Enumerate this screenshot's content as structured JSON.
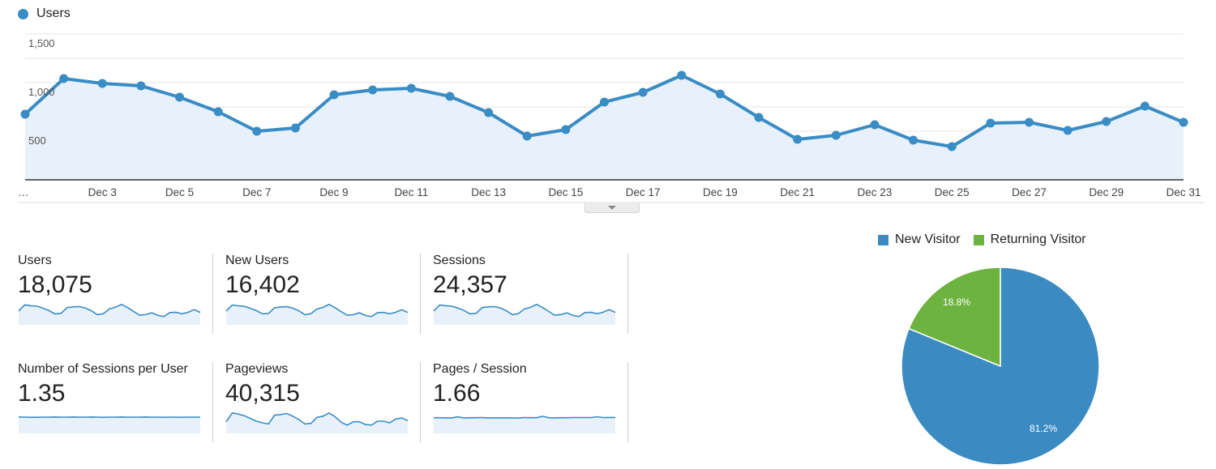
{
  "header": {
    "series_label": "Users",
    "series_color": "#3a8cc5"
  },
  "colors": {
    "line": "#3a8cc5",
    "fill": "#e8f1f9",
    "grid": "#e6e6e6",
    "new_visitor": "#3b8bc2",
    "returning_visitor": "#6db33f"
  },
  "chart_data": [
    {
      "type": "area",
      "title": "Users",
      "x": [
        "Dec 1",
        "Dec 2",
        "Dec 3",
        "Dec 4",
        "Dec 5",
        "Dec 6",
        "Dec 7",
        "Dec 8",
        "Dec 9",
        "Dec 10",
        "Dec 11",
        "Dec 12",
        "Dec 13",
        "Dec 14",
        "Dec 15",
        "Dec 16",
        "Dec 17",
        "Dec 18",
        "Dec 19",
        "Dec 20",
        "Dec 21",
        "Dec 22",
        "Dec 23",
        "Dec 24",
        "Dec 25",
        "Dec 26",
        "Dec 27",
        "Dec 28",
        "Dec 29",
        "Dec 30",
        "Dec 31"
      ],
      "series": [
        {
          "name": "Users",
          "values": [
            675,
            1042,
            992,
            967,
            850,
            700,
            500,
            533,
            875,
            925,
            942,
            858,
            692,
            450,
            517,
            800,
            900,
            1075,
            883,
            642,
            417,
            458,
            567,
            408,
            342,
            583,
            592,
            508,
            600,
            758,
            592
          ]
        }
      ],
      "x_tick_labels": [
        "…",
        "Dec 3",
        "Dec 5",
        "Dec 7",
        "Dec 9",
        "Dec 11",
        "Dec 13",
        "Dec 15",
        "Dec 17",
        "Dec 19",
        "Dec 21",
        "Dec 23",
        "Dec 25",
        "Dec 27",
        "Dec 29",
        "Dec 31"
      ],
      "y_tick_labels": [
        "500",
        "1,000",
        "1,500"
      ],
      "ylim": [
        0,
        1500
      ],
      "grid": true,
      "legend_position": "top-left",
      "xlabel": "",
      "ylabel": ""
    },
    {
      "type": "pie",
      "title": "",
      "categories": [
        "New Visitor",
        "Returning Visitor"
      ],
      "values": [
        81.2,
        18.8
      ],
      "labels": [
        "81.2%",
        "18.8%"
      ],
      "legend_position": "top"
    },
    {
      "type": "table",
      "title": "Summary metrics",
      "categories": [
        "Users",
        "New Users",
        "Sessions",
        "Number of Sessions per User",
        "Pageviews",
        "Pages / Session"
      ],
      "values": [
        18075,
        16402,
        24357,
        1.35,
        40315,
        1.66
      ]
    }
  ],
  "metrics": [
    {
      "label": "Users",
      "value": "18,075",
      "spark": [
        675,
        1042,
        992,
        967,
        850,
        700,
        500,
        533,
        875,
        925,
        942,
        858,
        692,
        450,
        517,
        800,
        900,
        1075,
        883,
        642,
        417,
        458,
        567,
        408,
        342,
        583,
        592,
        508,
        600,
        758,
        592
      ]
    },
    {
      "label": "New Users",
      "value": "16,402",
      "spark": [
        610,
        950,
        910,
        880,
        770,
        640,
        460,
        480,
        800,
        840,
        860,
        780,
        630,
        410,
        470,
        730,
        820,
        990,
        800,
        580,
        380,
        410,
        520,
        370,
        310,
        530,
        540,
        460,
        550,
        690,
        540
      ]
    },
    {
      "label": "Sessions",
      "value": "24,357",
      "spark": [
        910,
        1400,
        1340,
        1300,
        1150,
        950,
        680,
        720,
        1180,
        1250,
        1270,
        1160,
        930,
        610,
        700,
        1080,
        1210,
        1450,
        1190,
        870,
        560,
        620,
        760,
        550,
        460,
        790,
        800,
        690,
        810,
        1020,
        800
      ]
    },
    {
      "label": "Number of Sessions per User",
      "value": "1.35",
      "spark": [
        1.35,
        1.34,
        1.33,
        1.33,
        1.34,
        1.34,
        1.35,
        1.34,
        1.34,
        1.35,
        1.34,
        1.34,
        1.35,
        1.34,
        1.33,
        1.34,
        1.34,
        1.35,
        1.34,
        1.34,
        1.34,
        1.35,
        1.34,
        1.34,
        1.33,
        1.34,
        1.34,
        1.33,
        1.34,
        1.34,
        1.34
      ]
    },
    {
      "label": "Pageviews",
      "value": "40,315",
      "spark": [
        1500,
        2300,
        2200,
        2050,
        1800,
        1550,
        1400,
        1300,
        2100,
        2150,
        2250,
        2000,
        1700,
        1300,
        1350,
        1900,
        2000,
        2300,
        1950,
        1450,
        1200,
        1500,
        1500,
        1250,
        1200,
        1550,
        1550,
        1400,
        1750,
        1850,
        1600
      ]
    },
    {
      "label": "Pages / Session",
      "value": "1.66",
      "spark": [
        1.66,
        1.66,
        1.65,
        1.65,
        1.72,
        1.64,
        1.66,
        1.66,
        1.67,
        1.65,
        1.65,
        1.65,
        1.65,
        1.65,
        1.64,
        1.67,
        1.66,
        1.66,
        1.76,
        1.66,
        1.65,
        1.66,
        1.66,
        1.67,
        1.67,
        1.67,
        1.67,
        1.73,
        1.67,
        1.68,
        1.68
      ]
    }
  ],
  "pie": {
    "legend": [
      {
        "label": "New Visitor"
      },
      {
        "label": "Returning Visitor"
      }
    ],
    "slices": [
      {
        "label": "New Visitor",
        "pct": 81.2,
        "text": "81.2%"
      },
      {
        "label": "Returning Visitor",
        "pct": 18.8,
        "text": "18.8%"
      }
    ]
  },
  "toggle": {
    "icon": "chevron-down-icon"
  }
}
